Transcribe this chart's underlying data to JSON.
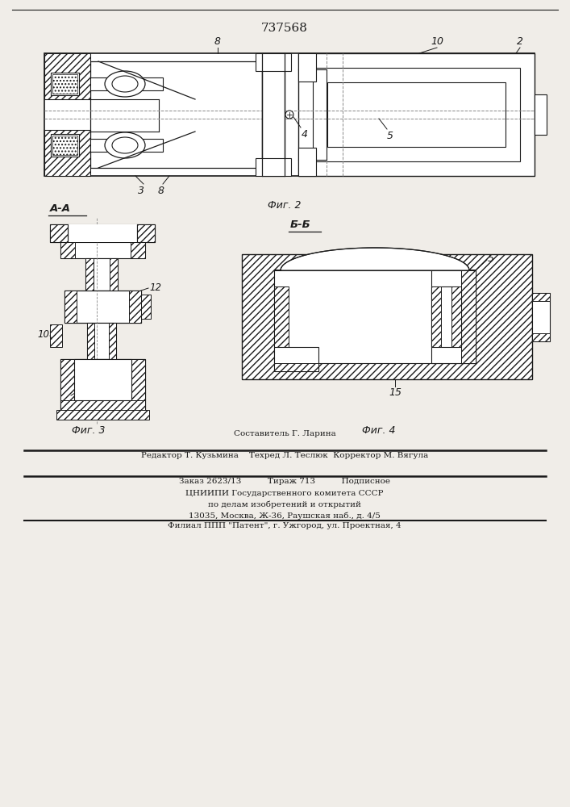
{
  "title_number": "737568",
  "fig2_label": "Фиг. 2",
  "fig3_label": "Фиг. 3",
  "fig4_label": "Фиг. 4",
  "section_aa": "А-А",
  "section_bb": "Б-Б",
  "bg_color": "#f0ede8",
  "line_color": "#1a1a1a",
  "footer_line1": "Составитель Г. Ларина",
  "footer_line2": "Редактор Т. Кузьмина    Техред Л. Теслюк  Корректор М. Вягула",
  "footer_line3": "Заказ 2623/13          Тираж 713          Подписное",
  "footer_line4": "ЦНИИПИ Государственного комитета СССР",
  "footer_line5": "по делам изобретений и открытий",
  "footer_line6": "13035, Москва, Ж-36, Раушская наб., д. 4/5",
  "footer_line7": "Филиал ППП \"Патент\", г. Ужгород, ул. Проектная, 4"
}
